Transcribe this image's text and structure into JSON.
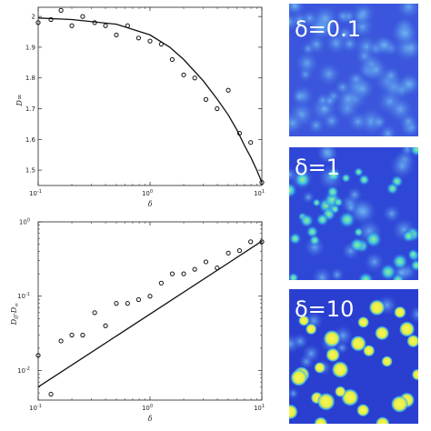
{
  "chart_data": [
    {
      "type": "scatter",
      "xlabel": "δ",
      "ylabel": "D∞",
      "xscale": "log",
      "xlim": [
        0.1,
        10
      ],
      "ylim": [
        1.45,
        2.03
      ],
      "grid": false,
      "xticks": [
        "10",
        "10",
        "10"
      ],
      "xtick_exps": [
        "-1",
        "0",
        "1"
      ],
      "yticks": [
        "1.5",
        "1.6",
        "1.7",
        "1.8",
        "1.9",
        "2"
      ],
      "ytick_values": [
        1.5,
        1.6,
        1.7,
        1.8,
        1.9,
        2.0
      ],
      "series": [
        {
          "kind": "markers",
          "x": [
            0.1,
            0.13,
            0.16,
            0.2,
            0.25,
            0.32,
            0.4,
            0.5,
            0.63,
            0.79,
            1.0,
            1.26,
            1.58,
            2.0,
            2.51,
            3.16,
            3.98,
            5.01,
            6.31,
            7.94,
            10.0
          ],
          "y": [
            1.98,
            1.99,
            2.02,
            1.97,
            2.0,
            1.98,
            1.97,
            1.94,
            1.97,
            1.93,
            1.92,
            1.91,
            1.86,
            1.81,
            1.8,
            1.73,
            1.7,
            1.76,
            1.62,
            1.59,
            1.46
          ]
        },
        {
          "kind": "line",
          "x": [
            0.1,
            0.2,
            0.5,
            1.0,
            1.5,
            2.0,
            3.0,
            4.0,
            5.0,
            6.0,
            7.0,
            8.0,
            9.0,
            10.0
          ],
          "y": [
            1.995,
            1.99,
            1.975,
            1.94,
            1.9,
            1.86,
            1.79,
            1.73,
            1.68,
            1.63,
            1.58,
            1.54,
            1.5,
            1.46
          ]
        }
      ]
    },
    {
      "type": "scatter",
      "xlabel": "δ",
      "ylabel_main": "D",
      "ylabel_sub": "0",
      "ylabel_rest": "-D",
      "ylabel_sub2": "∞",
      "xscale": "log",
      "yscale": "log",
      "xlim": [
        0.1,
        10
      ],
      "ylim": [
        0.004,
        1
      ],
      "grid": false,
      "xticks": [
        "10",
        "10",
        "10"
      ],
      "xtick_exps": [
        "-1",
        "0",
        "1"
      ],
      "yticks": [
        "10",
        "10",
        "10"
      ],
      "ytick_exps": [
        "-2",
        "-1",
        "0"
      ],
      "series": [
        {
          "kind": "markers",
          "x": [
            0.1,
            0.13,
            0.16,
            0.2,
            0.25,
            0.32,
            0.4,
            0.5,
            0.63,
            0.79,
            1.0,
            1.26,
            1.58,
            2.0,
            2.51,
            3.16,
            3.98,
            5.01,
            6.31,
            7.94,
            10.0
          ],
          "y": [
            0.016,
            0.0048,
            0.025,
            0.03,
            0.03,
            0.06,
            0.04,
            0.08,
            0.08,
            0.09,
            0.1,
            0.15,
            0.2,
            0.2,
            0.23,
            0.29,
            0.24,
            0.38,
            0.41,
            0.54,
            0.54
          ]
        },
        {
          "kind": "line",
          "x": [
            0.1,
            10.0
          ],
          "y": [
            0.006,
            0.55
          ]
        }
      ]
    }
  ],
  "panels": [
    {
      "label": "δ=0.1",
      "density": "low"
    },
    {
      "label": "δ=1",
      "density": "medium"
    },
    {
      "label": "δ=10",
      "density": "high"
    }
  ],
  "colors": {
    "background_blue": "#2f47d6",
    "blob_light": "#56c8f0",
    "blob_green": "#7cf07a",
    "blob_yellow": "#f5f542",
    "marker": "#111111",
    "line": "#111111"
  }
}
